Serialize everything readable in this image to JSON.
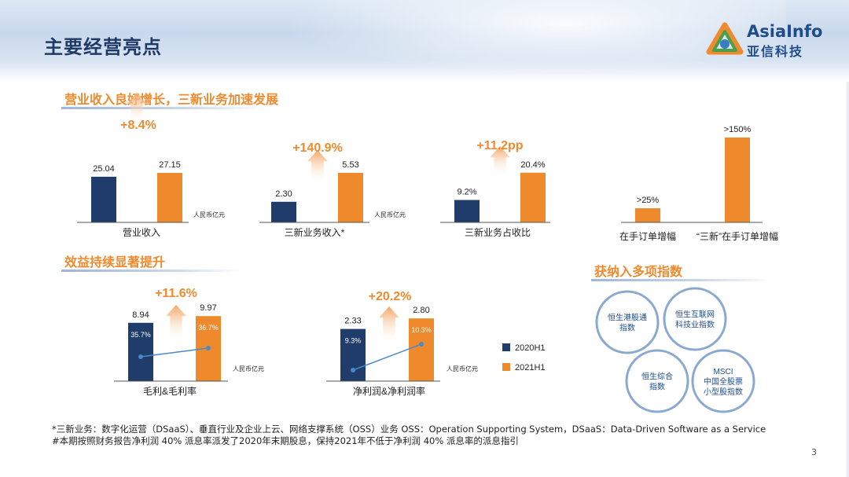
{
  "page": {
    "title": "主要经营亮点",
    "logo_en": "AsiaInfo",
    "logo_cn": "亚信科技",
    "page_number": "3"
  },
  "sections": {
    "revenue_heading": "营业收入良好增长，三新业务加速发展",
    "profit_heading": "效益持续显著提升",
    "index_heading": "获纳入多项指数"
  },
  "colors": {
    "h1_2020": "#1f3c6b",
    "h1_2021": "#ee8a2c",
    "accent": "#ef8a2e",
    "line": "#4a88c8",
    "circle_border": "#8aa9d0",
    "circle_text": "#1f4c8c"
  },
  "legend": {
    "series_2020": "2020H1",
    "series_2021": "2021H1"
  },
  "chart_data": [
    {
      "id": "revenue",
      "type": "bar",
      "xlabel": "营业收入",
      "unit": "人民币亿元",
      "categories": [
        "2020H1",
        "2021H1"
      ],
      "values": [
        25.04,
        27.15
      ],
      "value_labels": [
        "25.04",
        "27.15"
      ],
      "growth": "+8.4%"
    },
    {
      "id": "new_business_revenue",
      "type": "bar",
      "xlabel": "三新业务收入*",
      "unit": "人民币亿元",
      "categories": [
        "2020H1",
        "2021H1"
      ],
      "values": [
        2.3,
        5.53
      ],
      "value_labels": [
        "2.30",
        "5.53"
      ],
      "growth": "+140.9%"
    },
    {
      "id": "new_business_share",
      "type": "bar",
      "xlabel": "三新业务占收比",
      "categories": [
        "2020H1",
        "2021H1"
      ],
      "values": [
        9.2,
        20.4
      ],
      "value_labels": [
        "9.2%",
        "20.4%"
      ],
      "growth": "+11.2pp"
    },
    {
      "id": "order_backlog",
      "type": "bar",
      "categories": [
        "在手订单增幅",
        "“三新”在手订单增幅"
      ],
      "values": [
        25,
        150
      ],
      "value_labels": [
        ">25%",
        ">150%"
      ]
    },
    {
      "id": "gross_profit",
      "type": "bar+line",
      "xlabel": "毛利&毛利率",
      "unit": "人民币亿元",
      "categories": [
        "2020H1",
        "2021H1"
      ],
      "values": [
        8.94,
        9.97
      ],
      "value_labels": [
        "8.94",
        "9.97"
      ],
      "margin": [
        35.7,
        36.7
      ],
      "margin_labels": [
        "35.7%",
        "36.7%"
      ],
      "growth": "+11.6%"
    },
    {
      "id": "net_profit",
      "type": "bar+line",
      "xlabel": "净利润&净利润率",
      "unit": "人民币亿元",
      "categories": [
        "2020H1",
        "2021H1"
      ],
      "values": [
        2.33,
        2.8
      ],
      "value_labels": [
        "2.33",
        "2.80"
      ],
      "margin": [
        9.3,
        10.3
      ],
      "margin_labels": [
        "9.3%",
        "10.3%"
      ],
      "growth": "+20.2%"
    }
  ],
  "indices": [
    {
      "lines": [
        "恒生港股通",
        "指数"
      ]
    },
    {
      "lines": [
        "恒生互联网",
        "科技业指数"
      ]
    },
    {
      "lines": [
        "恒生综合",
        "指数"
      ]
    },
    {
      "lines": [
        "MSCI",
        "中国全股票",
        "小型股指数"
      ]
    }
  ],
  "footnotes": [
    "*三新业务：数字化运营（DSaaS）、垂直行业及企业上云、网络支撑系统（OSS）业务    OSS：Operation Supporting System，DSaaS：Data-Driven Software as a Service",
    "#本期按照财务报告净利润 40% 派息率派发了2020年末期股息，保持2021年不低于净利润 40% 派息率的派息指引"
  ]
}
